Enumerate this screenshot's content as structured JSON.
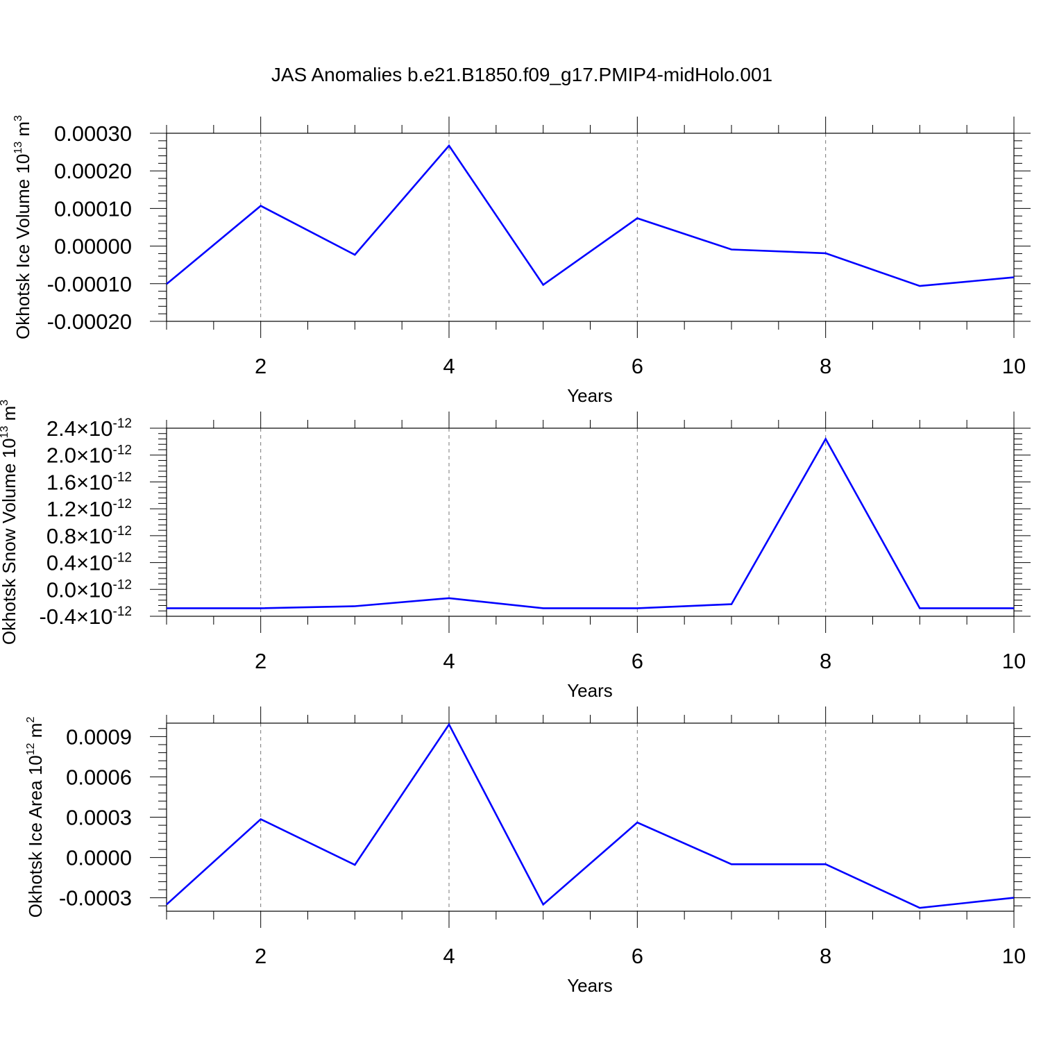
{
  "title": "JAS Anomalies b.e21.B1850.f09_g17.PMIP4-midHolo.001",
  "colors": {
    "series": "#0000ff",
    "grid": "#777777",
    "axis": "#000000"
  },
  "chart_data": [
    {
      "type": "line",
      "ylabel_main": "Okhotsk Ice Volume 10",
      "ylabel_exp": "13",
      "ylabel_unit": " m",
      "ylabel_unit_exp": "3",
      "xlabel": "Years",
      "xlim": [
        1,
        10
      ],
      "ylim": [
        -0.0002,
        0.0003
      ],
      "xticks": [
        2,
        4,
        6,
        8,
        10
      ],
      "yticks": [
        {
          "value": -0.0002,
          "label": "-0.00020"
        },
        {
          "value": -0.0001,
          "label": "-0.00010"
        },
        {
          "value": 0.0,
          "label": "0.00000"
        },
        {
          "value": 0.0001,
          "label": "0.00010"
        },
        {
          "value": 0.0002,
          "label": "0.00020"
        },
        {
          "value": 0.0003,
          "label": "0.00030"
        }
      ],
      "grid_x": true,
      "x": [
        1,
        2,
        3,
        4,
        5,
        6,
        7,
        8,
        9,
        10
      ],
      "values": [
        -0.000101,
        0.000107,
        -2.3e-05,
        0.000267,
        -0.000103,
        7.4e-05,
        -9e-06,
        -1.9e-05,
        -0.000106,
        -8.3e-05
      ]
    },
    {
      "type": "line",
      "ylabel_main": "Okhotsk Snow Volume 10",
      "ylabel_exp": "13",
      "ylabel_unit": " m",
      "ylabel_unit_exp": "3",
      "xlabel": "Years",
      "xlim": [
        1,
        10
      ],
      "ylim": [
        -4e-13,
        2.4e-12
      ],
      "xticks": [
        2,
        4,
        6,
        8,
        10
      ],
      "yticks": [
        {
          "value": -4e-13,
          "label": "-0.4×10",
          "exp": "-12"
        },
        {
          "value": 0.0,
          "label": "0.0×10",
          "exp": "-12"
        },
        {
          "value": 4e-13,
          "label": "0.4×10",
          "exp": "-12"
        },
        {
          "value": 8e-13,
          "label": "0.8×10",
          "exp": "-12"
        },
        {
          "value": 1.2e-12,
          "label": "1.2×10",
          "exp": "-12"
        },
        {
          "value": 1.6e-12,
          "label": "1.6×10",
          "exp": "-12"
        },
        {
          "value": 2e-12,
          "label": "2.0×10",
          "exp": "-12"
        },
        {
          "value": 2.4e-12,
          "label": "2.4×10",
          "exp": "-12"
        }
      ],
      "grid_x": true,
      "x": [
        1,
        2,
        3,
        4,
        5,
        6,
        7,
        8,
        9,
        10
      ],
      "values": [
        -2.8e-13,
        -2.8e-13,
        -2.5e-13,
        -1.3e-13,
        -2.8e-13,
        -2.8e-13,
        -2.2e-13,
        2.24e-12,
        -2.8e-13,
        -2.8e-13
      ]
    },
    {
      "type": "line",
      "ylabel_main": "Okhotsk Ice Area 10",
      "ylabel_exp": "12",
      "ylabel_unit": " m",
      "ylabel_unit_exp": "2",
      "xlabel": "Years",
      "xlim": [
        1,
        10
      ],
      "ylim": [
        -0.0004,
        0.001
      ],
      "xticks": [
        2,
        4,
        6,
        8,
        10
      ],
      "yticks": [
        {
          "value": -0.0003,
          "label": "-0.0003"
        },
        {
          "value": 0.0,
          "label": "0.0000"
        },
        {
          "value": 0.0003,
          "label": "0.0003"
        },
        {
          "value": 0.0006,
          "label": "0.0006"
        },
        {
          "value": 0.0009,
          "label": "0.0009"
        }
      ],
      "grid_x": true,
      "x": [
        1,
        2,
        3,
        4,
        5,
        6,
        7,
        8,
        9,
        10
      ],
      "values": [
        -0.00035,
        0.000285,
        -5.5e-05,
        0.00099,
        -0.00035,
        0.00026,
        -5e-05,
        -5e-05,
        -0.000375,
        -0.0003
      ]
    }
  ]
}
